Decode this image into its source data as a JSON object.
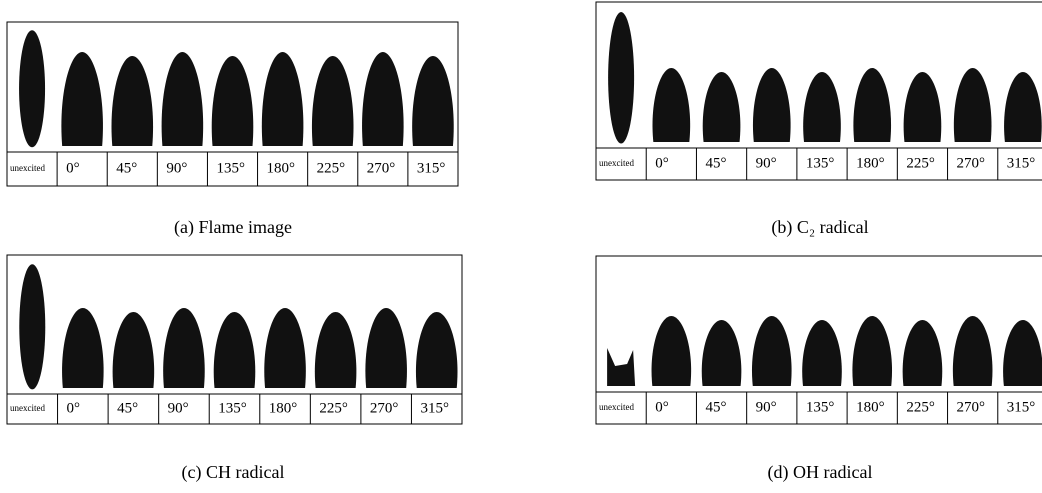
{
  "panels": [
    {
      "caption": "(a) Flame image",
      "labels": [
        "unexcited",
        "0°",
        "45°",
        "90°",
        "135°",
        "180°",
        "225°",
        "270°",
        "315°"
      ]
    },
    {
      "caption": "(b) C₂ radical",
      "labels": [
        "unexcited",
        "0°",
        "45°",
        "90°",
        "135°",
        "180°",
        "225°",
        "270°",
        "315°"
      ]
    },
    {
      "caption": "(c) CH radical",
      "labels": [
        "unexcited",
        "0°",
        "45°",
        "90°",
        "135°",
        "180°",
        "225°",
        "270°",
        "315°"
      ]
    },
    {
      "caption": "(d) OH radical",
      "labels": [
        "unexcited",
        "0°",
        "45°",
        "90°",
        "135°",
        "180°",
        "225°",
        "270°",
        "315°"
      ]
    }
  ]
}
